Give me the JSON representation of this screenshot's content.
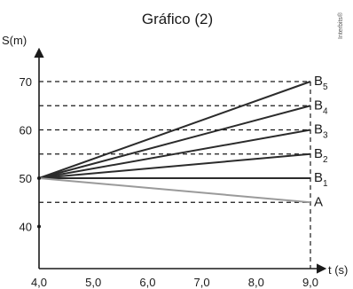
{
  "watermark": "Interbits®",
  "chart_data": {
    "type": "line",
    "title": "Gráfico (2)",
    "xlabel": "t (s)",
    "ylabel": "S(m)",
    "xlim": [
      4.0,
      9.0
    ],
    "ylim": [
      36,
      76
    ],
    "x_ticks": [
      "4,0",
      "5,0",
      "6,0",
      "7,0",
      "8,0",
      "9,0"
    ],
    "x_tick_values": [
      4,
      5,
      6,
      7,
      8,
      9
    ],
    "y_ticks": [
      "40",
      "50",
      "60",
      "70"
    ],
    "y_tick_values": [
      40,
      50,
      60,
      70
    ],
    "grid": false,
    "reference_lines": [
      45,
      55,
      60,
      65,
      70
    ],
    "series": [
      {
        "label": "B",
        "sub": "5",
        "x": [
          4,
          9
        ],
        "y": [
          50,
          70
        ],
        "color": "#2b2b2b"
      },
      {
        "label": "B",
        "sub": "4",
        "x": [
          4,
          9
        ],
        "y": [
          50,
          65
        ],
        "color": "#2b2b2b"
      },
      {
        "label": "B",
        "sub": "3",
        "x": [
          4,
          9
        ],
        "y": [
          50,
          60
        ],
        "color": "#2b2b2b"
      },
      {
        "label": "B",
        "sub": "2",
        "x": [
          4,
          9
        ],
        "y": [
          50,
          55
        ],
        "color": "#2b2b2b"
      },
      {
        "label": "B",
        "sub": "1",
        "x": [
          4,
          9
        ],
        "y": [
          50,
          50
        ],
        "color": "#2b2b2b"
      },
      {
        "label": "A",
        "sub": "",
        "x": [
          4,
          9
        ],
        "y": [
          50,
          45
        ],
        "color": "#9a9a9a"
      }
    ]
  }
}
